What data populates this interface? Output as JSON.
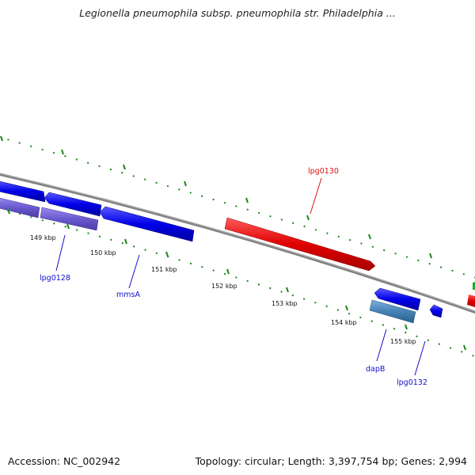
{
  "title": "Legionella pneumophila subsp. pneumophila str. Philadelphia ...",
  "footer": {
    "accession": "Accession: NC_002942",
    "summary": "Topology: circular; Length: 3,397,754 bp; Genes: 2,994"
  },
  "ticks": {
    "labels": [
      "149 kbp",
      "150 kbp",
      "151 kbp",
      "152 kbp",
      "153 kbp",
      "154 kbp",
      "155 kbp"
    ]
  },
  "genes": [
    {
      "id": "lpg0128",
      "label": "lpg0128",
      "color": "#1010cc"
    },
    {
      "id": "mmsA",
      "label": "mmsA",
      "color": "#1010cc"
    },
    {
      "id": "lpg0130",
      "label": "lpg0130",
      "color": "#e01010"
    },
    {
      "id": "dapB",
      "label": "dapB",
      "color": "#1010cc"
    },
    {
      "id": "lpg0132",
      "label": "lpg0132",
      "color": "#1010cc"
    }
  ],
  "colors": {
    "backbone": "#808080",
    "forward_strand": "#e01010",
    "reverse_strand": "#1010ee",
    "rna_strand": "#6a5acd",
    "steelblue_gene": "#4682b4",
    "tick": "#1a8a1a"
  }
}
